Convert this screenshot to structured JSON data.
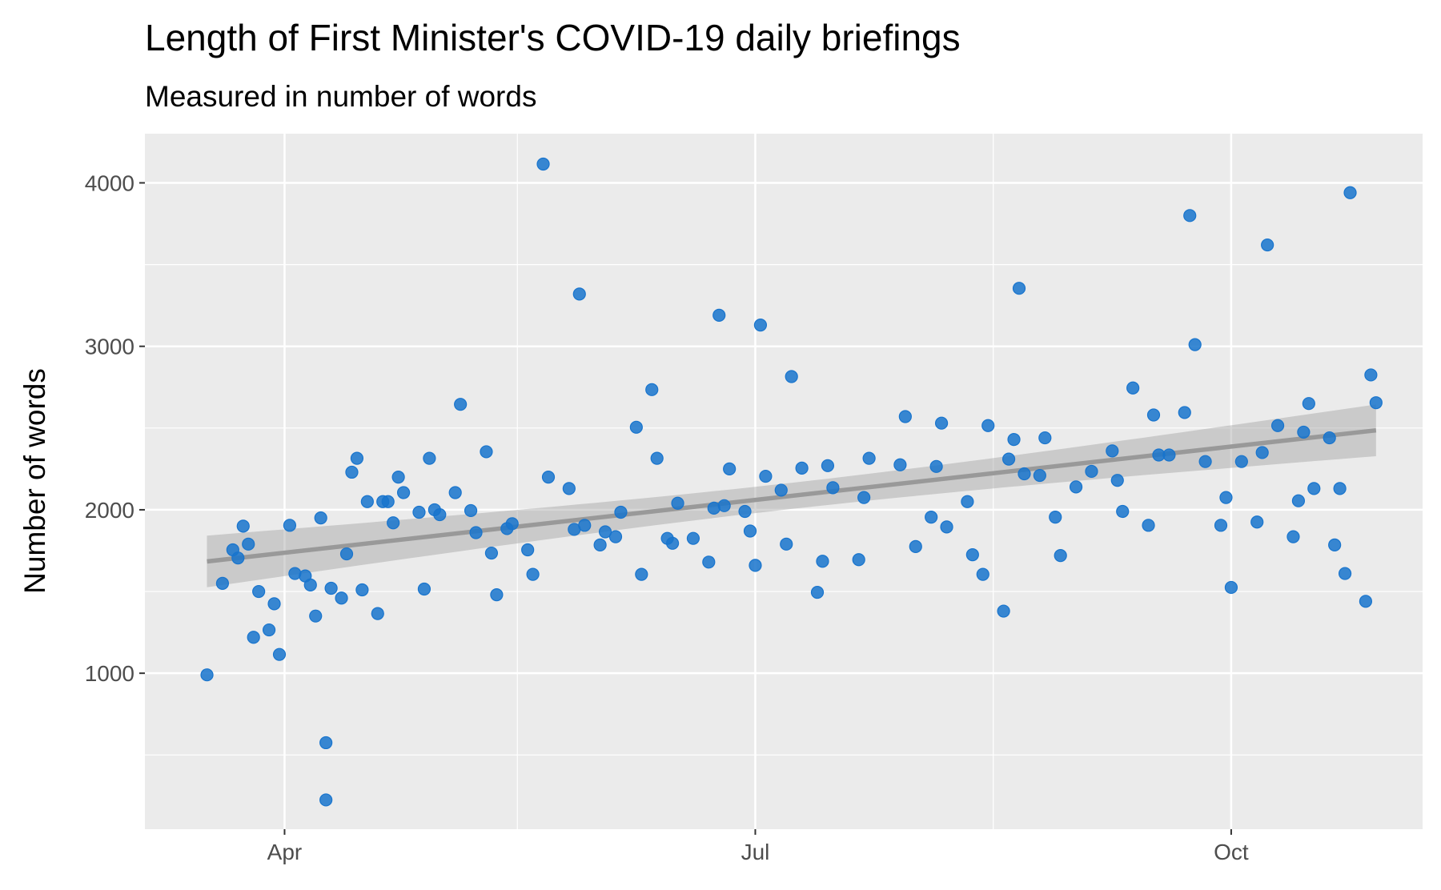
{
  "chart_data": {
    "type": "scatter",
    "title": "Length of First Minister's COVID-19 daily briefings",
    "subtitle": "Measured in number of words",
    "xlabel": "",
    "ylabel": "Number of words",
    "x_ticks": [
      "Apr",
      "Jul",
      "Oct"
    ],
    "x_tick_dates": [
      "Apr 1",
      "Jul 1",
      "Oct 1"
    ],
    "x_minor_dates": [
      "May 16",
      "Aug 16"
    ],
    "y_ticks": [
      1000,
      2000,
      3000,
      4000
    ],
    "y_minor": [
      500,
      1500,
      2500,
      3500
    ],
    "xlim": [
      "Mar 5",
      "Nov 7"
    ],
    "ylim": [
      46,
      4301
    ],
    "grid": true,
    "legend": "none",
    "colors": {
      "point": "#1874CD",
      "trend": "#999999",
      "ribbon": "#999999",
      "panel": "#EBEBEB",
      "grid": "#FFFFFF"
    },
    "trend": {
      "method": "linear",
      "start": {
        "x": "Mar 17",
        "y": 1684,
        "ci": [
          1525,
          1836
        ]
      },
      "end": {
        "x": "Oct 29",
        "y": 2486,
        "ci": [
          2322,
          2644
        ]
      },
      "ci_halfwidth_center": 80
    },
    "points": [
      [
        "Mar 17",
        990
      ],
      [
        "Mar 20",
        1550
      ],
      [
        "Mar 22",
        1755
      ],
      [
        "Mar 23",
        1705
      ],
      [
        "Mar 24",
        1900
      ],
      [
        "Mar 25",
        1790
      ],
      [
        "Mar 26",
        1220
      ],
      [
        "Mar 27",
        1500
      ],
      [
        "Mar 29",
        1265
      ],
      [
        "Mar 30",
        1425
      ],
      [
        "Mar 31",
        1115
      ],
      [
        "Apr 2",
        1905
      ],
      [
        "Apr 3",
        1610
      ],
      [
        "Apr 5",
        1595
      ],
      [
        "Apr 6",
        1540
      ],
      [
        "Apr 7",
        1350
      ],
      [
        "Apr 8",
        1950
      ],
      [
        "Apr 9",
        575
      ],
      [
        "Apr 9",
        225
      ],
      [
        "Apr 10",
        1520
      ],
      [
        "Apr 12",
        1460
      ],
      [
        "Apr 13",
        1730
      ],
      [
        "Apr 14",
        2230
      ],
      [
        "Apr 15",
        2315
      ],
      [
        "Apr 16",
        1510
      ],
      [
        "Apr 17",
        2050
      ],
      [
        "Apr 19",
        1365
      ],
      [
        "Apr 20",
        2050
      ],
      [
        "Apr 21",
        2050
      ],
      [
        "Apr 22",
        1920
      ],
      [
        "Apr 23",
        2200
      ],
      [
        "Apr 24",
        2105
      ],
      [
        "Apr 27",
        1985
      ],
      [
        "Apr 28",
        1515
      ],
      [
        "Apr 29",
        2315
      ],
      [
        "Apr 30",
        2000
      ],
      [
        "May 1",
        1970
      ],
      [
        "May 4",
        2105
      ],
      [
        "May 5",
        2645
      ],
      [
        "May 7",
        1995
      ],
      [
        "May 8",
        1860
      ],
      [
        "May 10",
        2355
      ],
      [
        "May 11",
        1735
      ],
      [
        "May 12",
        1480
      ],
      [
        "May 14",
        1885
      ],
      [
        "May 15",
        1915
      ],
      [
        "May 18",
        1755
      ],
      [
        "May 19",
        1605
      ],
      [
        "May 21",
        4115
      ],
      [
        "May 22",
        2200
      ],
      [
        "May 26",
        2130
      ],
      [
        "May 27",
        1880
      ],
      [
        "May 28",
        3320
      ],
      [
        "May 29",
        1905
      ],
      [
        "Jun 1",
        1785
      ],
      [
        "Jun 2",
        1865
      ],
      [
        "Jun 4",
        1835
      ],
      [
        "Jun 5",
        1985
      ],
      [
        "Jun 8",
        2505
      ],
      [
        "Jun 9",
        1605
      ],
      [
        "Jun 11",
        2735
      ],
      [
        "Jun 12",
        2315
      ],
      [
        "Jun 14",
        1825
      ],
      [
        "Jun 15",
        1795
      ],
      [
        "Jun 16",
        2040
      ],
      [
        "Jun 19",
        1825
      ],
      [
        "Jun 22",
        1680
      ],
      [
        "Jun 23",
        2010
      ],
      [
        "Jun 24",
        3190
      ],
      [
        "Jun 25",
        2025
      ],
      [
        "Jun 26",
        2250
      ],
      [
        "Jun 29",
        1990
      ],
      [
        "Jun 30",
        1870
      ],
      [
        "Jul 1",
        1660
      ],
      [
        "Jul 2",
        3130
      ],
      [
        "Jul 3",
        2205
      ],
      [
        "Jul 6",
        2120
      ],
      [
        "Jul 7",
        1790
      ],
      [
        "Jul 8",
        2815
      ],
      [
        "Jul 10",
        2255
      ],
      [
        "Jul 13",
        1495
      ],
      [
        "Jul 14",
        1685
      ],
      [
        "Jul 15",
        2270
      ],
      [
        "Jul 16",
        2135
      ],
      [
        "Jul 21",
        1695
      ],
      [
        "Jul 22",
        2075
      ],
      [
        "Jul 23",
        2315
      ],
      [
        "Jul 29",
        2275
      ],
      [
        "Jul 30",
        2570
      ],
      [
        "Aug 1",
        1775
      ],
      [
        "Aug 4",
        1955
      ],
      [
        "Aug 5",
        2265
      ],
      [
        "Aug 6",
        2530
      ],
      [
        "Aug 7",
        1895
      ],
      [
        "Aug 11",
        2050
      ],
      [
        "Aug 12",
        1725
      ],
      [
        "Aug 14",
        1605
      ],
      [
        "Aug 15",
        2515
      ],
      [
        "Aug 18",
        1380
      ],
      [
        "Aug 19",
        2310
      ],
      [
        "Aug 20",
        2430
      ],
      [
        "Aug 21",
        3355
      ],
      [
        "Aug 22",
        2220
      ],
      [
        "Aug 25",
        2210
      ],
      [
        "Aug 26",
        2440
      ],
      [
        "Aug 28",
        1955
      ],
      [
        "Aug 29",
        1720
      ],
      [
        "Sep 1",
        2140
      ],
      [
        "Sep 4",
        2235
      ],
      [
        "Sep 8",
        2360
      ],
      [
        "Sep 9",
        2180
      ],
      [
        "Sep 10",
        1990
      ],
      [
        "Sep 12",
        2745
      ],
      [
        "Sep 15",
        1905
      ],
      [
        "Sep 16",
        2580
      ],
      [
        "Sep 17",
        2335
      ],
      [
        "Sep 19",
        2335
      ],
      [
        "Sep 22",
        2595
      ],
      [
        "Sep 23",
        3800
      ],
      [
        "Sep 24",
        3010
      ],
      [
        "Sep 26",
        2295
      ],
      [
        "Sep 29",
        1905
      ],
      [
        "Sep 30",
        2075
      ],
      [
        "Oct 1",
        1525
      ],
      [
        "Oct 3",
        2295
      ],
      [
        "Oct 6",
        1925
      ],
      [
        "Oct 7",
        2350
      ],
      [
        "Oct 8",
        3620
      ],
      [
        "Oct 10",
        2515
      ],
      [
        "Oct 13",
        1835
      ],
      [
        "Oct 14",
        2055
      ],
      [
        "Oct 15",
        2475
      ],
      [
        "Oct 16",
        2650
      ],
      [
        "Oct 17",
        2130
      ],
      [
        "Oct 20",
        2440
      ],
      [
        "Oct 21",
        1785
      ],
      [
        "Oct 22",
        2130
      ],
      [
        "Oct 23",
        1610
      ],
      [
        "Oct 24",
        3940
      ],
      [
        "Oct 27",
        1440
      ],
      [
        "Oct 28",
        2825
      ],
      [
        "Oct 29",
        2655
      ]
    ]
  }
}
